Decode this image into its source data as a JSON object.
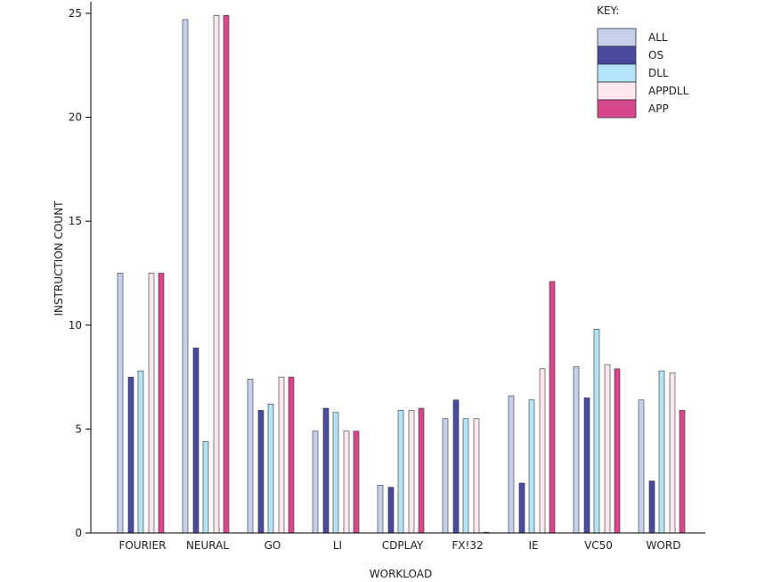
{
  "chart_data": {
    "type": "bar",
    "title": "",
    "xlabel": "WORKLOAD",
    "ylabel": "INSTRUCTION COUNT",
    "ylim": [
      0,
      25
    ],
    "yticks": [
      "0",
      "5",
      "10",
      "15",
      "20",
      "25"
    ],
    "grid": false,
    "legend_title": "KEY:",
    "legend_position": "top-right",
    "categories": [
      "FOURIER",
      "NEURAL",
      "GO",
      "LI",
      "CDPLAY",
      "FX!32",
      "IE",
      "VC50",
      "WORD"
    ],
    "series": [
      {
        "name": "ALL",
        "color": "#c5d0ea",
        "values": [
          12.5,
          24.7,
          7.4,
          4.9,
          2.3,
          5.5,
          6.6,
          8.0,
          6.4
        ]
      },
      {
        "name": "OS",
        "color": "#4a4aa0",
        "values": [
          7.5,
          8.9,
          5.9,
          6.0,
          2.2,
          6.4,
          2.4,
          6.5,
          2.5
        ]
      },
      {
        "name": "DLL",
        "color": "#b4e2f6",
        "values": [
          7.8,
          4.4,
          6.2,
          5.8,
          5.9,
          5.5,
          6.4,
          9.8,
          7.8
        ]
      },
      {
        "name": "APPDLL",
        "color": "#fbe6ee",
        "values": [
          12.5,
          24.9,
          7.5,
          4.9,
          5.9,
          5.5,
          7.9,
          8.1,
          7.7
        ]
      },
      {
        "name": "APP",
        "color": "#d6488a",
        "values": [
          12.5,
          24.9,
          7.5,
          4.9,
          6.0,
          0.0,
          12.1,
          7.9,
          5.9
        ]
      }
    ]
  }
}
